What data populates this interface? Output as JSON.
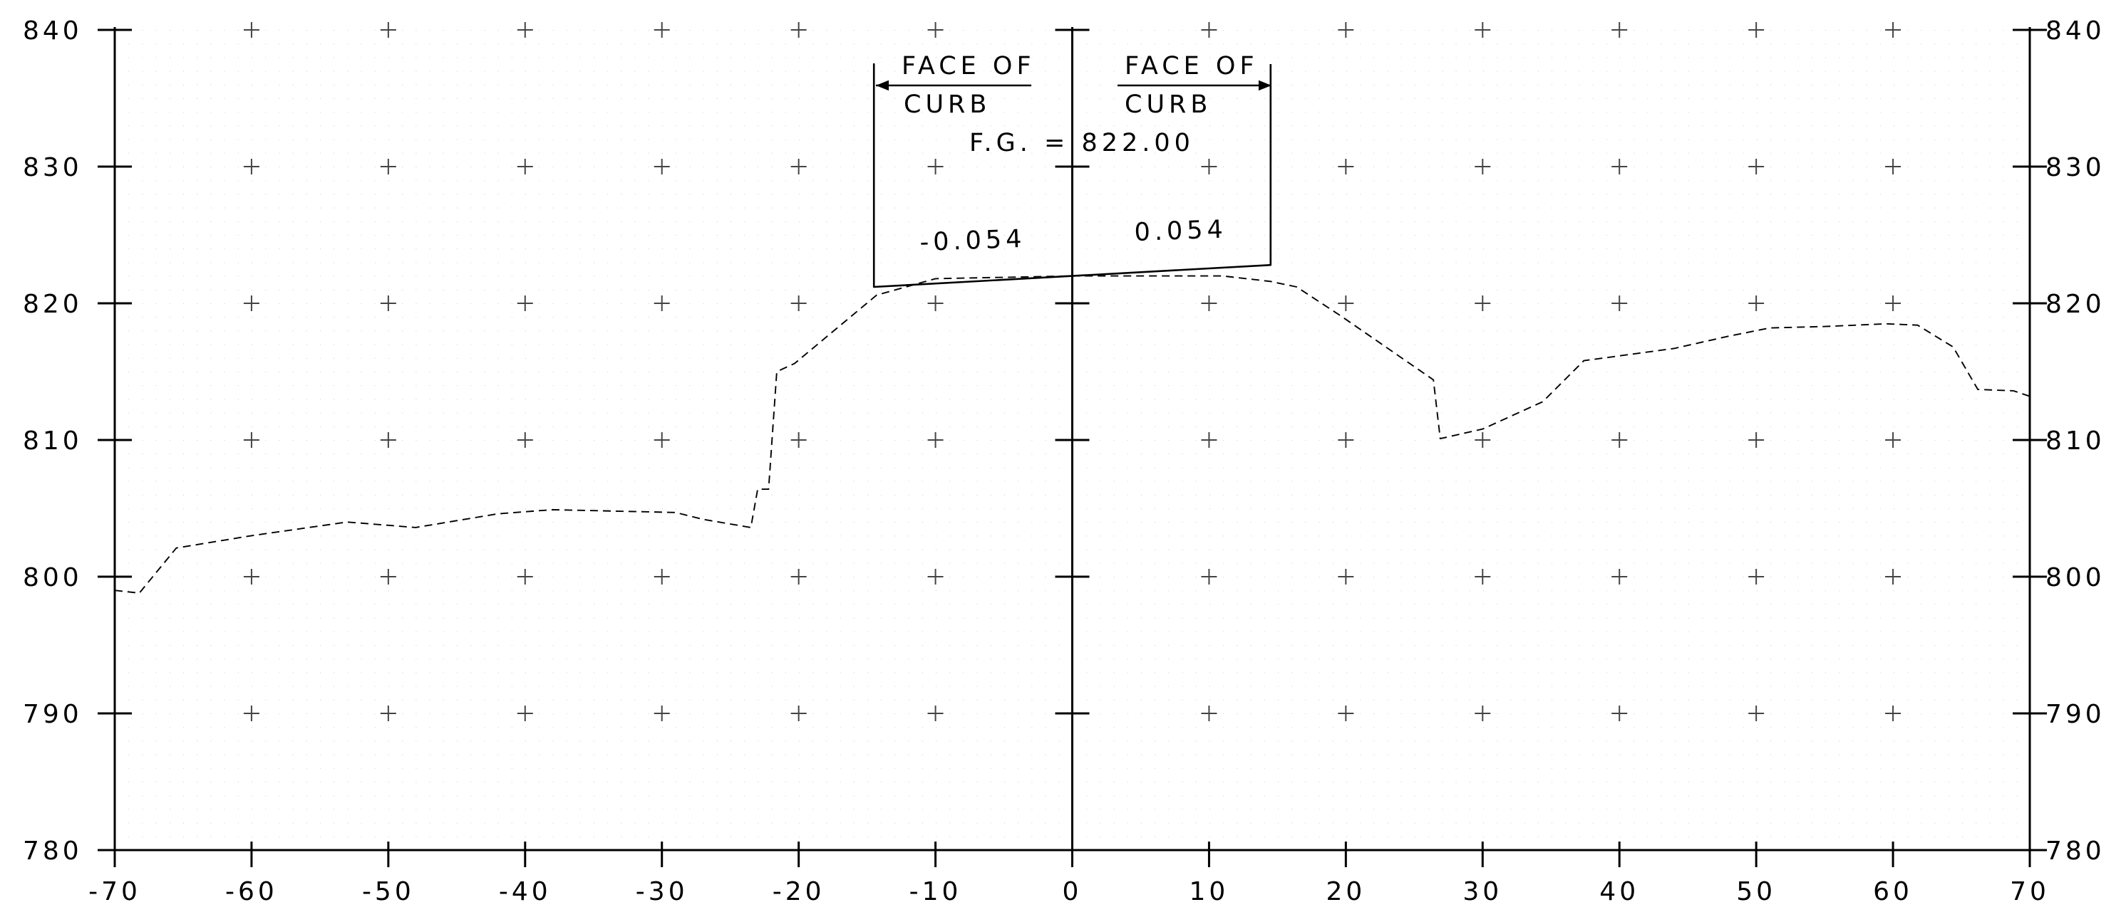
{
  "chart_data": {
    "type": "line",
    "title": "",
    "xlabel": "",
    "ylabel": "",
    "xlim": [
      -70,
      70
    ],
    "ylim": [
      780,
      840
    ],
    "x_ticks": [
      "-70",
      "-60",
      "-50",
      "-40",
      "-30",
      "-20",
      "-10",
      "0",
      "10",
      "20",
      "30",
      "40",
      "50",
      "60",
      "70"
    ],
    "y_ticks_left": [
      "840",
      "830",
      "820",
      "810",
      "800",
      "790",
      "780"
    ],
    "y_ticks_right": [
      "840",
      "830",
      "820",
      "810",
      "800",
      "790",
      "780"
    ],
    "grid": "dotted minor grid with cross marks at major intersections",
    "series": [
      {
        "name": "",
        "style": "dashed",
        "color": "#000000",
        "points": [
          [
            -70,
            799.0
          ],
          [
            -68.2,
            798.8
          ],
          [
            -65.5,
            802.1
          ],
          [
            -60,
            803.0
          ],
          [
            -53,
            804.0
          ],
          [
            -48,
            803.6
          ],
          [
            -42,
            804.6
          ],
          [
            -38,
            804.9
          ],
          [
            -29,
            804.7
          ],
          [
            -27,
            804.2
          ],
          [
            -23.5,
            803.6
          ],
          [
            -23,
            806.4
          ],
          [
            -22.2,
            806.4
          ],
          [
            -21.6,
            815.0
          ],
          [
            -20.3,
            815.6
          ],
          [
            -14.3,
            820.6
          ],
          [
            -10,
            821.8
          ],
          [
            0,
            822.0
          ],
          [
            11,
            822.0
          ],
          [
            14.5,
            821.6
          ],
          [
            16.4,
            821.2
          ],
          [
            19.6,
            819.1
          ],
          [
            26.4,
            814.4
          ],
          [
            26.9,
            810.1
          ],
          [
            30,
            810.8
          ],
          [
            34.4,
            812.8
          ],
          [
            37.4,
            815.8
          ],
          [
            44,
            816.7
          ],
          [
            48,
            817.6
          ],
          [
            51,
            818.2
          ],
          [
            55,
            818.3
          ],
          [
            59.5,
            818.5
          ],
          [
            61.8,
            818.4
          ],
          [
            64.4,
            816.8
          ],
          [
            66.2,
            813.7
          ],
          [
            68.8,
            813.6
          ],
          [
            70,
            813.2
          ]
        ]
      },
      {
        "name": "",
        "style": "solid",
        "color": "#000000",
        "points": [
          [
            -14.5,
            821.2
          ],
          [
            -14.5,
            837.5
          ],
          [
            -14.5,
            821.2
          ],
          [
            0,
            822.0
          ],
          [
            14.5,
            822.8
          ],
          [
            14.5,
            837.5
          ]
        ]
      }
    ],
    "annotations": [
      {
        "text_top": "FACE OF",
        "text_bottom": "CURB",
        "side": "left"
      },
      {
        "text_top": "FACE OF",
        "text_bottom": "CURB",
        "side": "right"
      },
      {
        "text": "F.G. = 822.00"
      },
      {
        "text": "-0.054",
        "side": "left"
      },
      {
        "text": "0.054",
        "side": "right"
      }
    ]
  }
}
